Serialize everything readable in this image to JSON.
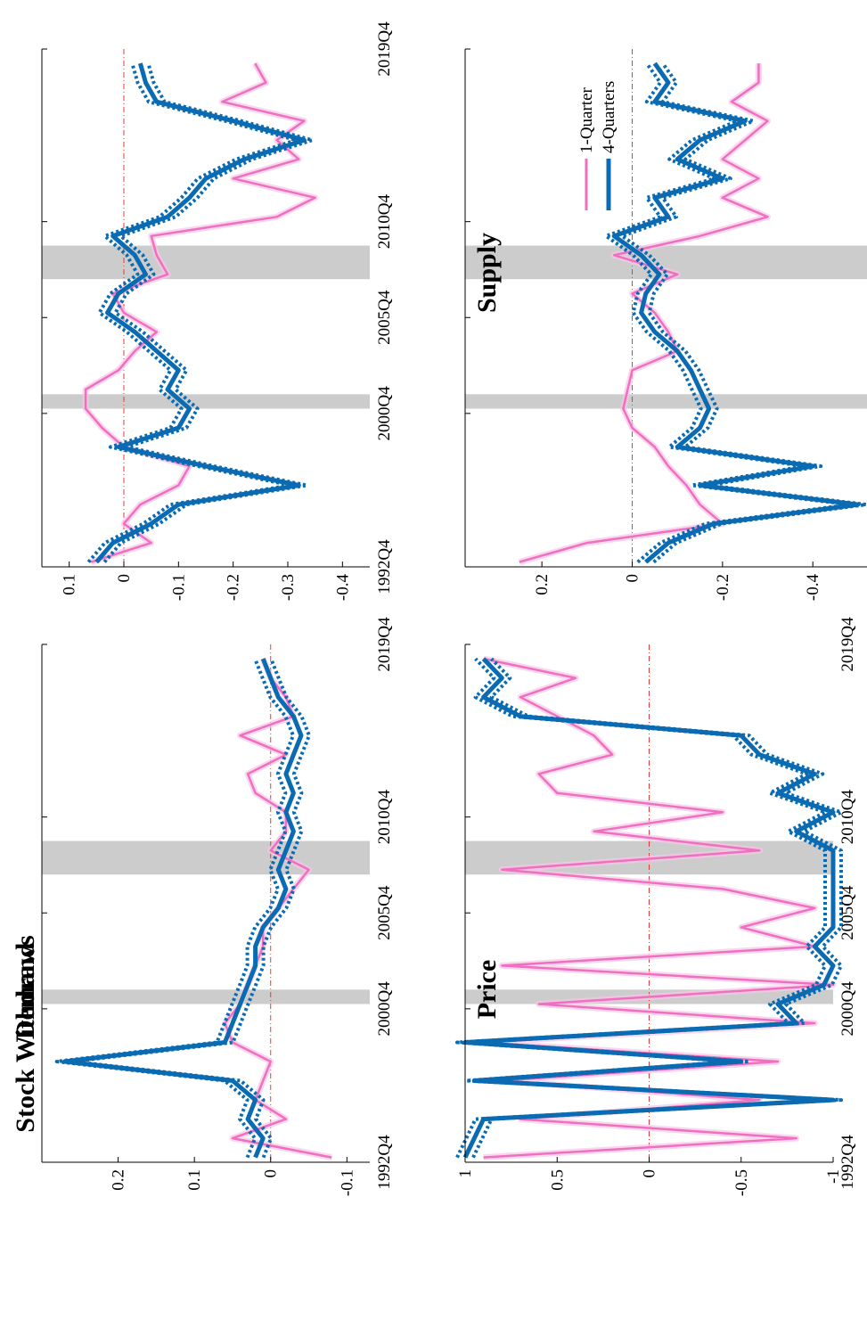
{
  "colors": {
    "one_quarter": "#f06fc1",
    "four_quarters": "#0b6bb2",
    "band": "#f7c7e6",
    "recession": "#cccccc",
    "zero_line": "#e63c3c"
  },
  "legend": {
    "one_quarter": "1-Quarter",
    "four_quarters": "4-Quarters"
  },
  "chart_data": [
    {
      "type": "line",
      "title": "Demand",
      "ylim": [
        -0.45,
        0.15
      ],
      "yticks": [
        0.1,
        0,
        -0.1,
        -0.2,
        -0.3,
        -0.4
      ],
      "ytick_labels": [
        "0.1",
        "0",
        "-0.1",
        "-0.2",
        "-0.3",
        "-0.4"
      ],
      "xlim": [
        1992.75,
        2019.75
      ],
      "xticks": [
        1992.75,
        2000.75,
        2005.75,
        2010.75,
        2019.75
      ],
      "xtick_labels": [
        "1992Q4",
        "2000Q4",
        "2005Q4",
        "2010Q4",
        "2019Q4"
      ],
      "recessions": [
        [
          2001.0,
          2001.75
        ],
        [
          2007.75,
          2009.5
        ]
      ],
      "series": [
        {
          "name": "1-Quarter",
          "x": [
            1993,
            1994,
            1995,
            1996,
            1997,
            1998,
            1999,
            2000,
            2001,
            2002,
            2003,
            2004,
            2005,
            2006,
            2007,
            2008,
            2009,
            2010,
            2011,
            2012,
            2013,
            2014,
            2015,
            2016,
            2017,
            2018,
            2019
          ],
          "y": [
            0.06,
            -0.05,
            0.0,
            -0.03,
            -0.1,
            -0.12,
            0.0,
            0.04,
            0.07,
            0.07,
            0.01,
            -0.02,
            -0.06,
            0.0,
            0.02,
            -0.08,
            -0.06,
            -0.05,
            -0.28,
            -0.35,
            -0.2,
            -0.32,
            -0.28,
            -0.33,
            -0.18,
            -0.26,
            -0.24
          ]
        },
        {
          "name": "4-Quarters",
          "x": [
            1993,
            1994,
            1995,
            1996,
            1997,
            1998,
            1999,
            2000,
            2001,
            2002,
            2003,
            2004,
            2005,
            2006,
            2007,
            2008,
            2009,
            2010,
            2011,
            2012,
            2013,
            2014,
            2015,
            2016,
            2017,
            2018,
            2019
          ],
          "y": [
            0.05,
            0.02,
            -0.05,
            -0.1,
            -0.32,
            -0.15,
            0.01,
            -0.1,
            -0.12,
            -0.08,
            -0.1,
            -0.06,
            -0.02,
            0.03,
            0.01,
            -0.04,
            -0.02,
            0.02,
            -0.08,
            -0.12,
            -0.15,
            -0.22,
            -0.33,
            -0.2,
            -0.06,
            -0.04,
            -0.03
          ]
        }
      ]
    },
    {
      "type": "line",
      "title": "Supply",
      "ylim": [
        -0.52,
        0.37
      ],
      "yticks": [
        0.2,
        0,
        -0.2,
        -0.4
      ],
      "ytick_labels": [
        "0.2",
        "0",
        "-0.2",
        "-0.4"
      ],
      "xlim": [
        1992.75,
        2019.75
      ],
      "xticks": [
        1992.75,
        2000.75,
        2005.75,
        2010.75,
        2019.75
      ],
      "xtick_labels": [
        "1992Q4",
        "2000Q4",
        "2005Q4",
        "2010Q4",
        "2019Q4"
      ],
      "recessions": [
        [
          2001.0,
          2001.75
        ],
        [
          2007.75,
          2009.5
        ]
      ],
      "series": [
        {
          "name": "1-Quarter",
          "x": [
            1993,
            1994,
            1995,
            1996,
            1997,
            1998,
            1999,
            2000,
            2001,
            2002,
            2003,
            2004,
            2005,
            2006,
            2007,
            2008,
            2009,
            2010,
            2011,
            2012,
            2013,
            2014,
            2015,
            2016,
            2017,
            2018,
            2019
          ],
          "y": [
            0.25,
            0.1,
            -0.2,
            -0.15,
            -0.12,
            -0.08,
            -0.05,
            0.0,
            0.02,
            0.01,
            0.0,
            -0.1,
            -0.08,
            -0.05,
            0.0,
            -0.1,
            0.04,
            -0.15,
            -0.3,
            -0.2,
            -0.28,
            -0.2,
            -0.25,
            -0.3,
            -0.22,
            -0.28,
            -0.28
          ]
        },
        {
          "name": "4-Quarters",
          "x": [
            1993,
            1994,
            1995,
            1996,
            1997,
            1998,
            1999,
            2000,
            2001,
            2002,
            2003,
            2004,
            2005,
            2006,
            2007,
            2008,
            2009,
            2010,
            2011,
            2012,
            2013,
            2014,
            2015,
            2016,
            2017,
            2018,
            2019
          ],
          "y": [
            -0.03,
            -0.08,
            -0.18,
            -0.5,
            -0.15,
            -0.4,
            -0.1,
            -0.15,
            -0.17,
            -0.15,
            -0.13,
            -0.1,
            -0.05,
            -0.02,
            -0.03,
            -0.06,
            -0.02,
            0.04,
            -0.08,
            -0.05,
            -0.2,
            -0.1,
            -0.15,
            -0.25,
            -0.05,
            -0.08,
            -0.05
          ]
        }
      ]
    },
    {
      "type": "line",
      "title": "Stock Withdraws",
      "ylim": [
        -0.13,
        0.3
      ],
      "yticks": [
        0.2,
        0.1,
        0,
        -0.1
      ],
      "ytick_labels": [
        "0.2",
        "0.1",
        "0",
        "-0.1"
      ],
      "xlim": [
        1992.75,
        2019.75
      ],
      "xticks": [
        1992.75,
        2000.75,
        2005.75,
        2010.75,
        2019.75
      ],
      "xtick_labels": [
        "1992Q4",
        "2000Q4",
        "2005Q4",
        "2010Q4",
        "2019Q4"
      ],
      "recessions": [
        [
          2001.0,
          2001.75
        ],
        [
          2007.75,
          2009.5
        ]
      ],
      "series": [
        {
          "name": "1-Quarter",
          "x": [
            1993,
            1994,
            1995,
            1996,
            1997,
            1998,
            1999,
            2000,
            2001,
            2002,
            2003,
            2004,
            2005,
            2006,
            2007,
            2008,
            2009,
            2010,
            2011,
            2012,
            2013,
            2014,
            2015,
            2016,
            2017,
            2018,
            2019
          ],
          "y": [
            -0.08,
            0.05,
            -0.02,
            0.02,
            0.01,
            0.0,
            0.05,
            0.06,
            0.04,
            0.03,
            0.02,
            0.01,
            0.01,
            -0.01,
            -0.03,
            -0.05,
            0.0,
            -0.02,
            -0.02,
            0.02,
            0.03,
            -0.02,
            0.04,
            -0.03,
            -0.02,
            0.0,
            0.01
          ]
        },
        {
          "name": "4-Quarters",
          "x": [
            1993,
            1994,
            1995,
            1996,
            1997,
            1998,
            1999,
            2000,
            2001,
            2002,
            2003,
            2004,
            2005,
            2006,
            2007,
            2008,
            2009,
            2010,
            2011,
            2012,
            2013,
            2014,
            2015,
            2016,
            2017,
            2018,
            2019
          ],
          "y": [
            0.02,
            0.01,
            0.03,
            0.02,
            0.05,
            0.27,
            0.06,
            0.05,
            0.04,
            0.03,
            0.02,
            0.02,
            0.01,
            -0.01,
            -0.02,
            -0.01,
            -0.02,
            -0.03,
            -0.02,
            -0.03,
            -0.02,
            -0.03,
            -0.04,
            -0.03,
            -0.01,
            0.0,
            0.01
          ]
        }
      ]
    },
    {
      "type": "line",
      "title": "Price",
      "ylim": [
        -1,
        1
      ],
      "yticks": [
        1,
        0.5,
        0,
        -0.5,
        -1
      ],
      "ytick_labels": [
        "1",
        "0.5",
        "0",
        "-0.5",
        "-1"
      ],
      "xlim": [
        1992.75,
        2019.75
      ],
      "xticks": [
        1992.75,
        2000.75,
        2005.75,
        2010.75,
        2019.75
      ],
      "xtick_labels": [
        "1992Q4",
        "2000Q4",
        "2005Q4",
        "2010Q4",
        "2019Q4"
      ],
      "recessions": [
        [
          2001.0,
          2001.75
        ],
        [
          2007.75,
          2009.5
        ]
      ],
      "series": [
        {
          "name": "1-Quarter",
          "x": [
            1993,
            1994,
            1995,
            1996,
            1997,
            1998,
            1999,
            2000,
            2001,
            2002,
            2003,
            2004,
            2005,
            2006,
            2007,
            2008,
            2009,
            2010,
            2011,
            2012,
            2013,
            2014,
            2015,
            2016,
            2017,
            2018,
            2019
          ],
          "y": [
            0.9,
            -0.8,
            0.7,
            -0.6,
            0.8,
            -0.7,
            0.9,
            -0.9,
            0.6,
            -1.0,
            0.8,
            -0.9,
            -0.5,
            -0.9,
            -0.4,
            0.8,
            -0.6,
            0.3,
            -0.4,
            0.5,
            0.6,
            0.2,
            0.3,
            0.5,
            0.7,
            0.4,
            0.9
          ]
        },
        {
          "name": "4-Quarters",
          "x": [
            1993,
            1994,
            1995,
            1996,
            1997,
            1998,
            1999,
            2000,
            2001,
            2002,
            2003,
            2004,
            2005,
            2006,
            2007,
            2008,
            2009,
            2010,
            2011,
            2012,
            2013,
            2014,
            2015,
            2016,
            2017,
            2018,
            2019
          ],
          "y": [
            1.0,
            0.95,
            0.9,
            -1.0,
            0.95,
            -0.5,
            1.0,
            -0.8,
            -0.7,
            -0.95,
            -1.0,
            -0.9,
            -1.0,
            -1.0,
            -1.0,
            -1.0,
            -1.0,
            -0.8,
            -1.0,
            -0.7,
            -0.9,
            -0.6,
            -0.5,
            0.7,
            0.9,
            0.8,
            0.9
          ]
        }
      ]
    }
  ]
}
